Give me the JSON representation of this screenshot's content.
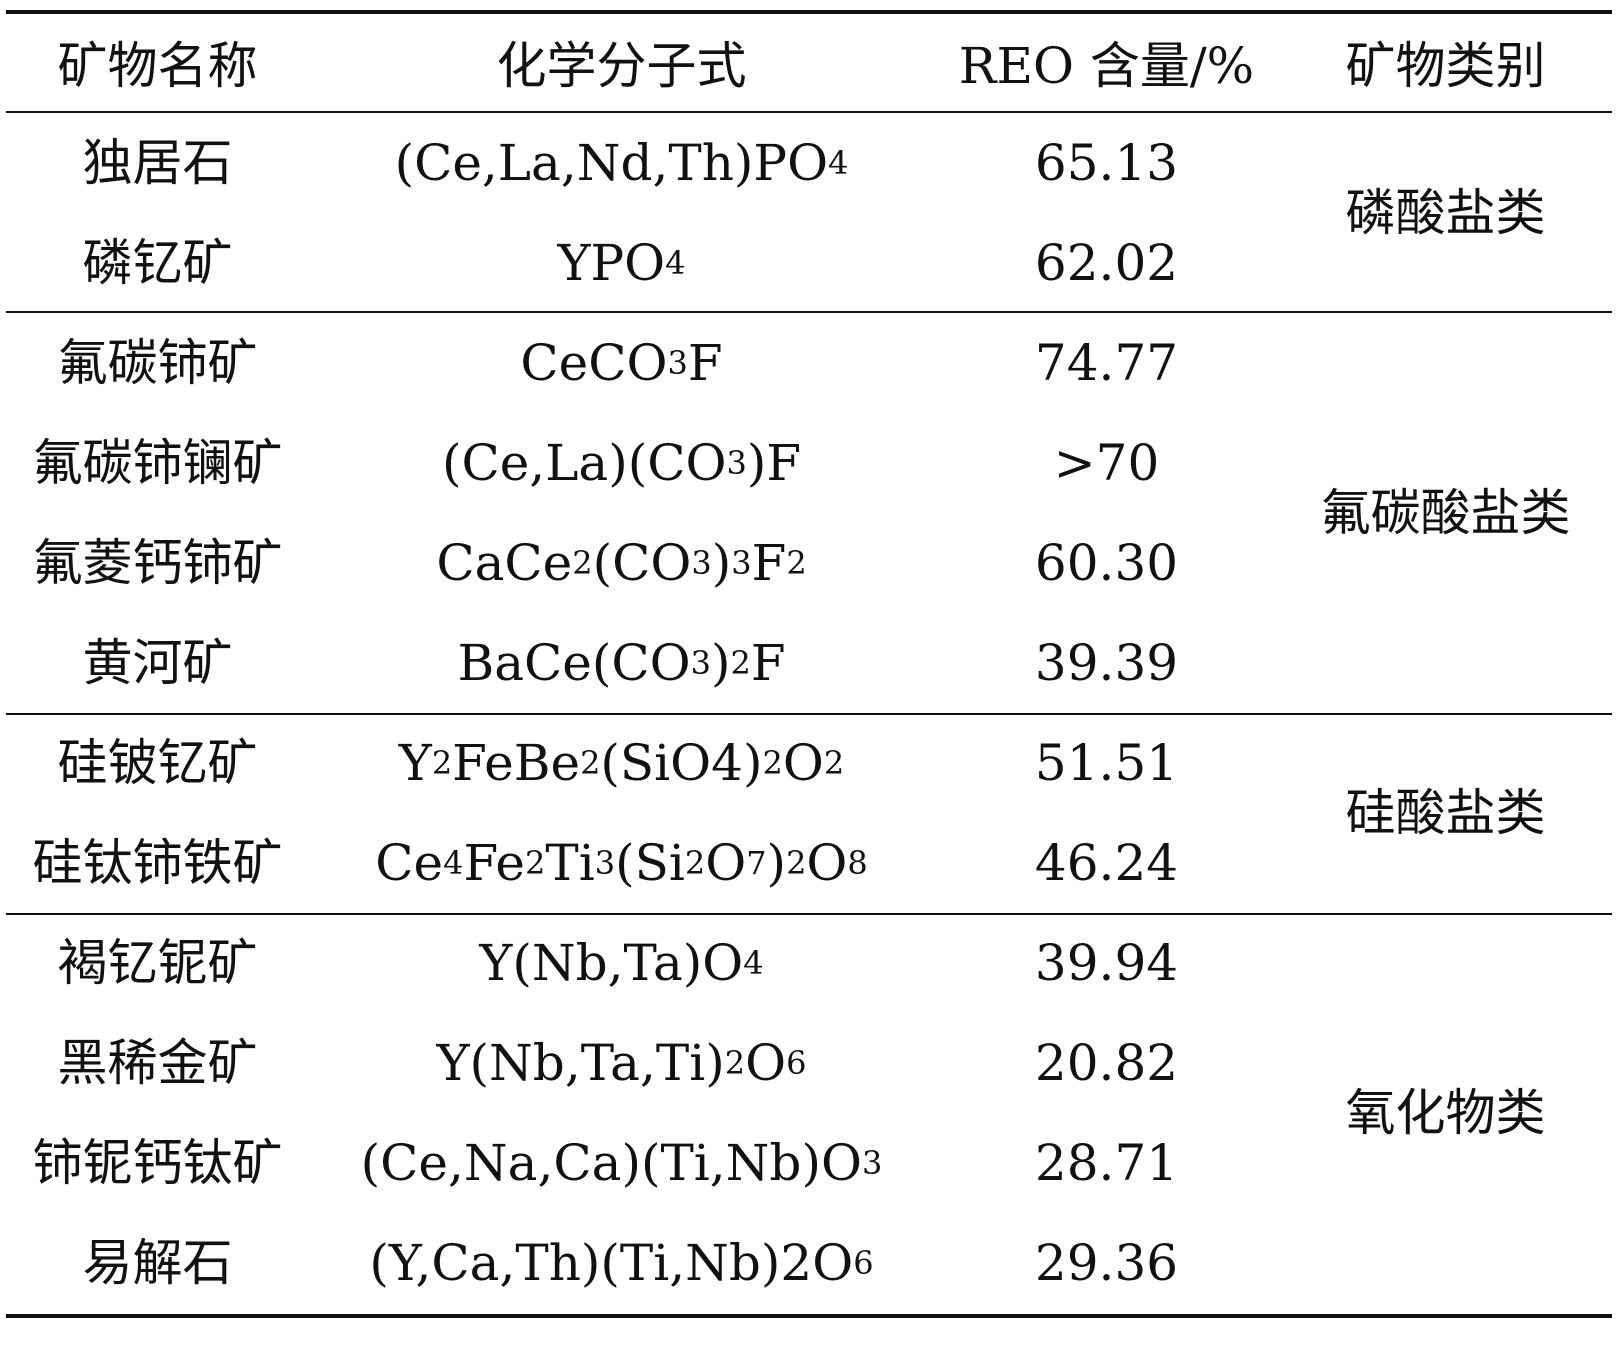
{
  "table": {
    "headers": [
      "矿物名称",
      "化学分子式",
      "REO 含量/%",
      "矿物类别"
    ],
    "rows": [
      {
        "name": "独居石",
        "formula": [
          [
            "(Ce,La,Nd,Th)PO",
            ""
          ],
          [
            "4",
            "sub"
          ]
        ],
        "reo": "65.13"
      },
      {
        "name": "磷钇矿",
        "formula": [
          [
            "YPO",
            ""
          ],
          [
            "4",
            "sub"
          ]
        ],
        "reo": "62.02"
      },
      {
        "name": "氟碳铈矿",
        "formula": [
          [
            "CeCO",
            ""
          ],
          [
            "3",
            "sub"
          ],
          [
            "F",
            ""
          ]
        ],
        "reo": "74.77"
      },
      {
        "name": "氟碳铈镧矿",
        "formula": [
          [
            "(Ce,La)(CO",
            ""
          ],
          [
            "3",
            "sub"
          ],
          [
            ")F",
            ""
          ]
        ],
        "reo": ">70"
      },
      {
        "name": "氟菱钙铈矿",
        "formula": [
          [
            "CaCe",
            ""
          ],
          [
            "2",
            "sub"
          ],
          [
            "(CO",
            ""
          ],
          [
            "3",
            "sub"
          ],
          [
            ")",
            ""
          ],
          [
            "3",
            "sub"
          ],
          [
            "F",
            ""
          ],
          [
            "2",
            "sub"
          ]
        ],
        "reo": "60.30"
      },
      {
        "name": "黄河矿",
        "formula": [
          [
            "BaCe(CO",
            ""
          ],
          [
            "3",
            "sub"
          ],
          [
            ")",
            ""
          ],
          [
            "2",
            "sub"
          ],
          [
            "F",
            ""
          ]
        ],
        "reo": "39.39"
      },
      {
        "name": "硅铍钇矿",
        "formula": [
          [
            "Y",
            ""
          ],
          [
            "2",
            "sub"
          ],
          [
            "FeBe",
            ""
          ],
          [
            "2",
            "sub"
          ],
          [
            "(SiO4)",
            ""
          ],
          [
            "2",
            "sub"
          ],
          [
            "O",
            ""
          ],
          [
            "2",
            "sub"
          ]
        ],
        "reo": "51.51"
      },
      {
        "name": "硅钛铈铁矿",
        "formula": [
          [
            "Ce",
            ""
          ],
          [
            "4",
            "sub"
          ],
          [
            "Fe",
            ""
          ],
          [
            "2",
            "sub"
          ],
          [
            "Ti",
            ""
          ],
          [
            "3",
            "sub"
          ],
          [
            "(Si",
            ""
          ],
          [
            "2",
            "sub"
          ],
          [
            "O",
            ""
          ],
          [
            "7",
            "sub"
          ],
          [
            ")",
            ""
          ],
          [
            "2",
            "sub"
          ],
          [
            "O",
            ""
          ],
          [
            "8",
            "sub"
          ]
        ],
        "reo": "46.24"
      },
      {
        "name": "褐钇铌矿",
        "formula": [
          [
            "Y(Nb,Ta)O",
            ""
          ],
          [
            "4",
            "sub"
          ]
        ],
        "reo": "39.94"
      },
      {
        "name": "黑稀金矿",
        "formula": [
          [
            "Y(Nb,Ta,Ti)",
            ""
          ],
          [
            "2",
            "sub"
          ],
          [
            "O",
            ""
          ],
          [
            "6",
            "sub"
          ]
        ],
        "reo": "20.82"
      },
      {
        "name": "铈铌钙钛矿",
        "formula": [
          [
            "(Ce,Na,Ca)(Ti,Nb)O",
            ""
          ],
          [
            "3",
            "sub"
          ]
        ],
        "reo": "28.71"
      },
      {
        "name": "易解石",
        "formula": [
          [
            "(Y,Ca,Th)(Ti,Nb)2O",
            ""
          ],
          [
            "6",
            "sub"
          ]
        ],
        "reo": "29.36"
      }
    ],
    "categories": [
      {
        "label": "磷酸盐类",
        "first_row": 0,
        "row_count": 2
      },
      {
        "label": "氟碳酸盐类",
        "first_row": 2,
        "row_count": 4
      },
      {
        "label": "硅酸盐类",
        "first_row": 6,
        "row_count": 2
      },
      {
        "label": "氧化物类",
        "first_row": 8,
        "row_count": 4
      }
    ]
  }
}
